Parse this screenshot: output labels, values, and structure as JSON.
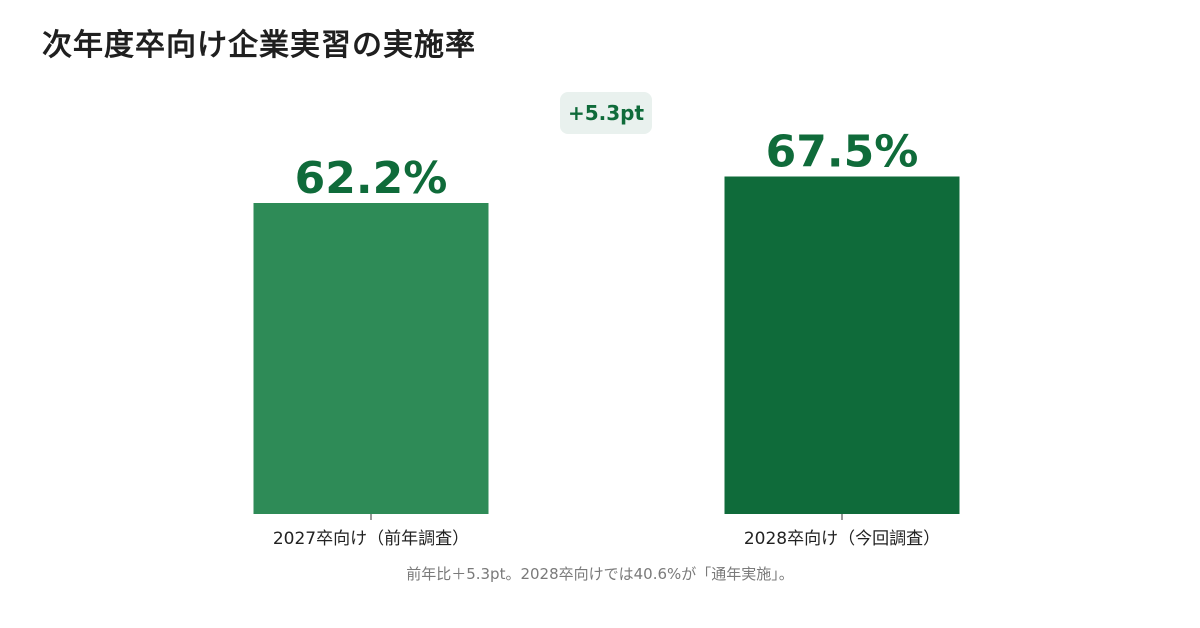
{
  "title": "次年度卒向け企業実習の実施率",
  "badge": {
    "text": "+5.3pt"
  },
  "footnote": "前年比＋5.3pt。2028卒向けでは40.6%が「通年実施」。",
  "colors": {
    "bar_previous": "#2e8b57",
    "bar_current": "#0f6b3a",
    "value_label": "#0f6b3a",
    "axis": "#333333"
  },
  "chart_data": {
    "type": "bar",
    "categories": [
      "2027卒向け（前年調査）",
      "2028卒向け（今回調査）"
    ],
    "values": [
      62.2,
      67.5
    ],
    "value_labels": [
      "62.2%",
      "67.5%"
    ],
    "title": "次年度卒向け企業実習の実施率",
    "xlabel": "",
    "ylabel": "",
    "ylim": [
      0,
      100
    ],
    "grid": false,
    "legend": "none"
  }
}
